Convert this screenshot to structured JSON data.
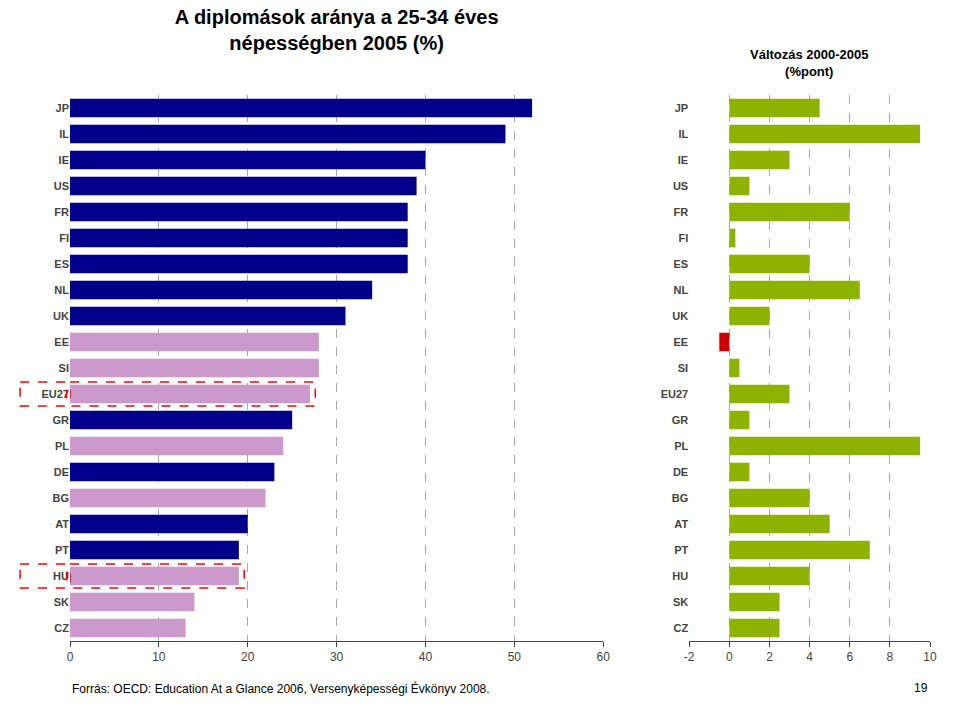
{
  "chart_data": [
    {
      "type": "bar",
      "orientation": "horizontal",
      "title": "A diplomások aránya a 25-34 éves",
      "subtitle": "népességben 2005 (%)",
      "categories": [
        "JP",
        "IL",
        "IE",
        "US",
        "FR",
        "FI",
        "ES",
        "NL",
        "UK",
        "EE",
        "SI",
        "EU27",
        "GR",
        "PL",
        "DE",
        "BG",
        "AT",
        "PT",
        "HU",
        "SK",
        "CZ"
      ],
      "values": [
        52,
        49,
        40,
        39,
        38,
        38,
        38,
        34,
        31,
        28,
        28,
        27,
        25,
        24,
        23,
        22,
        20,
        19,
        19,
        14,
        13
      ],
      "colors": [
        "#00008B",
        "#00008B",
        "#00008B",
        "#00008B",
        "#00008B",
        "#00008B",
        "#00008B",
        "#00008B",
        "#00008B",
        "#CC99CC",
        "#CC99CC",
        "#CC99CC",
        "#00008B",
        "#CC99CC",
        "#00008B",
        "#CC99CC",
        "#00008B",
        "#00008B",
        "#CC99CC",
        "#CC99CC",
        "#CC99CC"
      ],
      "xlim": [
        0,
        60
      ],
      "xticks": [
        0,
        10,
        20,
        30,
        40,
        50,
        60
      ],
      "grid": true,
      "highlight": [
        "EU27",
        "HU"
      ],
      "annotations": [
        "Forrás: OECD: Education At a Glance 2006, Versenyképességi Évkönyv 2008.",
        "19"
      ]
    },
    {
      "type": "bar",
      "orientation": "horizontal",
      "title": "Változás 2000-2005",
      "subtitle": "(%pont)",
      "categories": [
        "JP",
        "IL",
        "IE",
        "US",
        "FR",
        "FI",
        "ES",
        "NL",
        "UK",
        "EE",
        "SI",
        "EU27",
        "GR",
        "PL",
        "DE",
        "BG",
        "AT",
        "PT",
        "HU",
        "SK",
        "CZ"
      ],
      "values": [
        4.5,
        9.5,
        3.0,
        1.0,
        6.0,
        0.3,
        4.0,
        6.5,
        2.0,
        -0.5,
        0.5,
        3.0,
        1.0,
        9.5,
        1.0,
        4.0,
        5.0,
        7.0,
        4.0,
        2.5,
        2.5
      ],
      "colors": [
        "#8DB300",
        "#8DB300",
        "#8DB300",
        "#8DB300",
        "#8DB300",
        "#8DB300",
        "#8DB300",
        "#8DB300",
        "#8DB300",
        "#CC0000",
        "#8DB300",
        "#8DB300",
        "#8DB300",
        "#8DB300",
        "#8DB300",
        "#8DB300",
        "#8DB300",
        "#8DB300",
        "#8DB300",
        "#8DB300",
        "#8DB300"
      ],
      "xlim": [
        -2,
        10
      ],
      "xticks": [
        -2,
        0,
        2,
        4,
        6,
        8,
        10
      ],
      "grid": true
    }
  ]
}
